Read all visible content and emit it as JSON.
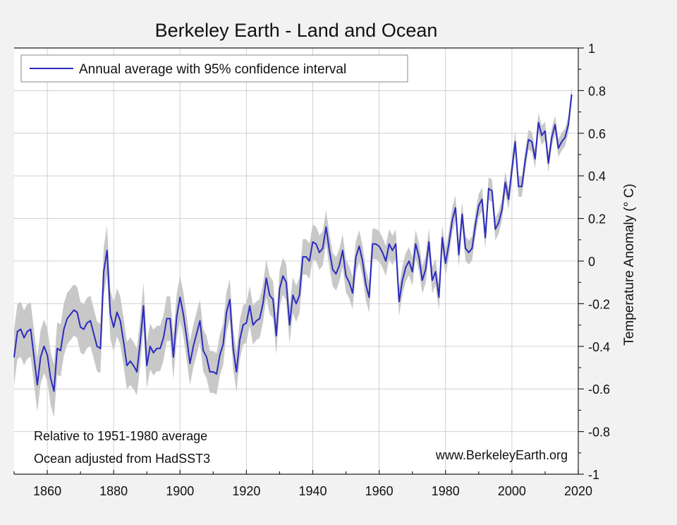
{
  "chart_data": {
    "type": "line",
    "title": "Berkeley Earth - Land and Ocean",
    "ylabel": "Temperature Anomaly (° C)",
    "xlabel": "",
    "xlim": [
      1850,
      2020
    ],
    "ylim": [
      -1,
      1
    ],
    "x_ticks": [
      1860,
      1880,
      1900,
      1920,
      1940,
      1960,
      1980,
      2000,
      2020
    ],
    "y_ticks": [
      -1,
      -0.8,
      -0.6,
      -0.4,
      -0.2,
      0,
      0.2,
      0.4,
      0.6,
      0.8,
      1
    ],
    "x_tick_labels": [
      "1860",
      "1880",
      "1900",
      "1920",
      "1940",
      "1960",
      "1980",
      "2000",
      "2020"
    ],
    "y_tick_labels": [
      "-1",
      "-0.8",
      "-0.6",
      "-0.4",
      "-0.2",
      "0",
      "0.2",
      "0.4",
      "0.6",
      "0.8",
      "1"
    ],
    "grid": true,
    "legend": {
      "position": "top-left",
      "entries": [
        "Annual average with 95% confidence interval"
      ]
    },
    "annotations": {
      "note1": "Relative to 1951-1980 average",
      "note2": "Ocean adjusted from HadSST3",
      "source": "www.BerkeleyEarth.org"
    },
    "colors": {
      "line": "#2b2bbf",
      "band": "#c8c8c8",
      "background": "#f2f2f2",
      "plot_bg": "#ffffff"
    },
    "series": [
      {
        "name": "Annual average with 95% confidence interval",
        "x_start": 1850,
        "x_step": 1,
        "values": [
          -0.45,
          -0.33,
          -0.32,
          -0.36,
          -0.33,
          -0.32,
          -0.45,
          -0.58,
          -0.45,
          -0.4,
          -0.44,
          -0.55,
          -0.61,
          -0.41,
          -0.42,
          -0.32,
          -0.27,
          -0.25,
          -0.23,
          -0.24,
          -0.31,
          -0.32,
          -0.29,
          -0.28,
          -0.34,
          -0.4,
          -0.41,
          -0.05,
          0.05,
          -0.25,
          -0.31,
          -0.24,
          -0.28,
          -0.38,
          -0.49,
          -0.47,
          -0.49,
          -0.52,
          -0.38,
          -0.21,
          -0.49,
          -0.4,
          -0.43,
          -0.41,
          -0.41,
          -0.36,
          -0.27,
          -0.27,
          -0.45,
          -0.26,
          -0.17,
          -0.25,
          -0.36,
          -0.48,
          -0.4,
          -0.34,
          -0.28,
          -0.42,
          -0.45,
          -0.52,
          -0.52,
          -0.53,
          -0.44,
          -0.39,
          -0.24,
          -0.18,
          -0.41,
          -0.52,
          -0.37,
          -0.3,
          -0.29,
          -0.21,
          -0.3,
          -0.28,
          -0.27,
          -0.2,
          -0.08,
          -0.16,
          -0.18,
          -0.35,
          -0.13,
          -0.07,
          -0.1,
          -0.3,
          -0.16,
          -0.2,
          -0.16,
          0.02,
          0.02,
          0.0,
          0.09,
          0.08,
          0.04,
          0.06,
          0.16,
          0.05,
          -0.04,
          -0.06,
          -0.02,
          0.05,
          -0.07,
          -0.1,
          -0.15,
          0.02,
          0.07,
          0.0,
          -0.11,
          -0.17,
          0.08,
          0.08,
          0.07,
          0.04,
          0.0,
          0.08,
          0.05,
          0.08,
          -0.19,
          -0.09,
          -0.03,
          0.0,
          -0.05,
          0.08,
          0.02,
          -0.09,
          -0.04,
          0.09,
          -0.09,
          -0.05,
          -0.17,
          0.11,
          -0.01,
          0.08,
          0.19,
          0.25,
          0.03,
          0.22,
          0.06,
          0.04,
          0.06,
          0.17,
          0.26,
          0.29,
          0.11,
          0.34,
          0.33,
          0.15,
          0.18,
          0.24,
          0.37,
          0.29,
          0.43,
          0.56,
          0.35,
          0.35,
          0.47,
          0.57,
          0.56,
          0.48,
          0.65,
          0.59,
          0.61,
          0.46,
          0.58,
          0.64,
          0.53,
          0.56,
          0.58,
          0.64,
          0.78
        ],
        "ci_halfwidth_start": 0.13,
        "ci_halfwidth_end": 0.04
      }
    ]
  }
}
